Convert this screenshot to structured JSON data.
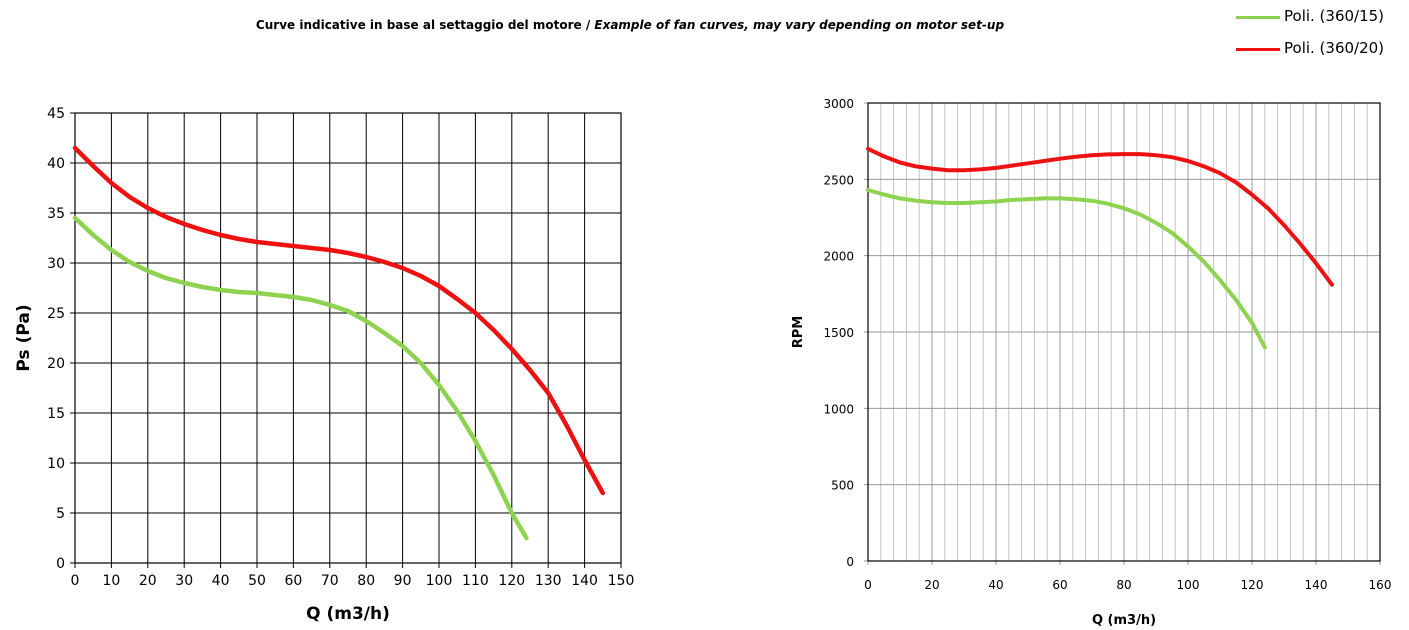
{
  "header": {
    "title_it": "Curve indicative in base al settaggio del motore",
    "separator": " / ",
    "title_en": "Example of fan curves, may vary depending on motor set-up"
  },
  "legend": [
    {
      "name": "Poli. (360/15)",
      "color": "#8ed34f"
    },
    {
      "name": "Poli. (360/20)",
      "color": "#ee1111"
    }
  ],
  "chart_data": [
    {
      "type": "line",
      "xlabel": "Q (m3/h)",
      "ylabel": "Ps (Pa)",
      "xlim": [
        0,
        150
      ],
      "ylim": [
        0,
        45
      ],
      "xticks": [
        0,
        10,
        20,
        30,
        40,
        50,
        60,
        70,
        80,
        90,
        100,
        110,
        120,
        130,
        140,
        150
      ],
      "yticks": [
        0,
        5,
        10,
        15,
        20,
        25,
        30,
        35,
        40,
        45
      ],
      "grid": true,
      "series": [
        {
          "name": "Poli. (360/15)",
          "color": "#8ed34f",
          "x": [
            0,
            5,
            10,
            15,
            20,
            25,
            30,
            35,
            40,
            45,
            50,
            55,
            60,
            65,
            70,
            75,
            80,
            85,
            90,
            95,
            100,
            105,
            110,
            115,
            120,
            124
          ],
          "y": [
            34.5,
            32.8,
            31.3,
            30.1,
            29.2,
            28.5,
            28.0,
            27.6,
            27.3,
            27.1,
            27.0,
            26.8,
            26.6,
            26.3,
            25.8,
            25.2,
            24.2,
            23.0,
            21.7,
            20.0,
            17.8,
            15.2,
            12.2,
            8.8,
            5.0,
            2.5
          ]
        },
        {
          "name": "Poli. (360/20)",
          "color": "#ee1111",
          "x": [
            0,
            5,
            10,
            15,
            20,
            25,
            30,
            35,
            40,
            45,
            50,
            55,
            60,
            65,
            70,
            75,
            80,
            85,
            90,
            95,
            100,
            105,
            110,
            115,
            120,
            125,
            130,
            135,
            140,
            145
          ],
          "y": [
            41.5,
            39.7,
            38.0,
            36.6,
            35.5,
            34.6,
            33.9,
            33.3,
            32.8,
            32.4,
            32.1,
            31.9,
            31.7,
            31.5,
            31.3,
            31.0,
            30.6,
            30.1,
            29.5,
            28.7,
            27.7,
            26.4,
            25.0,
            23.3,
            21.4,
            19.3,
            17.0,
            13.8,
            10.3,
            7.0
          ]
        }
      ]
    },
    {
      "type": "line",
      "xlabel": "Q (m3/h)",
      "ylabel": "RPM",
      "xlim": [
        0,
        160
      ],
      "ylim": [
        0,
        3000
      ],
      "xticks": [
        0,
        20,
        40,
        60,
        80,
        100,
        120,
        140,
        160
      ],
      "yticks": [
        0,
        500,
        1000,
        1500,
        2000,
        2500,
        3000
      ],
      "x_minor_step": 4,
      "grid": true,
      "series": [
        {
          "name": "Poli. (360/15)",
          "color": "#8ed34f",
          "x": [
            0,
            5,
            10,
            15,
            20,
            25,
            30,
            35,
            40,
            45,
            50,
            55,
            60,
            65,
            70,
            75,
            80,
            85,
            90,
            95,
            100,
            105,
            110,
            115,
            120,
            124
          ],
          "y": [
            2430,
            2400,
            2375,
            2360,
            2350,
            2345,
            2345,
            2350,
            2355,
            2365,
            2370,
            2375,
            2375,
            2370,
            2360,
            2340,
            2310,
            2270,
            2215,
            2150,
            2060,
            1960,
            1840,
            1710,
            1560,
            1400
          ]
        },
        {
          "name": "Poli. (360/20)",
          "color": "#ee1111",
          "x": [
            0,
            5,
            10,
            15,
            20,
            25,
            30,
            35,
            40,
            45,
            50,
            55,
            60,
            65,
            70,
            75,
            80,
            85,
            90,
            95,
            100,
            105,
            110,
            115,
            120,
            125,
            130,
            135,
            140,
            145
          ],
          "y": [
            2700,
            2650,
            2610,
            2585,
            2570,
            2560,
            2560,
            2565,
            2575,
            2590,
            2605,
            2620,
            2635,
            2648,
            2658,
            2663,
            2665,
            2665,
            2658,
            2645,
            2620,
            2585,
            2540,
            2480,
            2400,
            2310,
            2200,
            2080,
            1950,
            1810
          ]
        }
      ]
    }
  ]
}
